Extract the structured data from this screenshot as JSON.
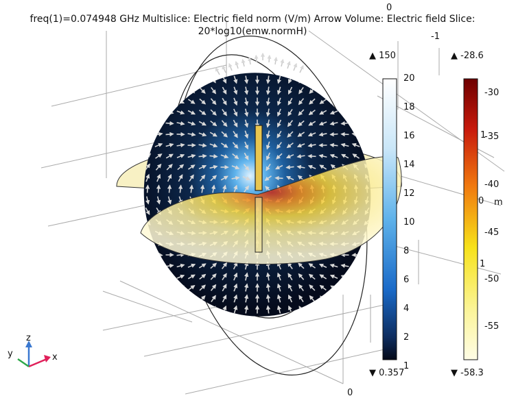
{
  "header": {
    "line1": "freq(1)=0.074948 GHz Multislice: Electric field norm (V/m)  Arrow Volume: Electric field  Slice:",
    "line2": "20*log10(emw.normH)"
  },
  "axes": {
    "top_zero": "0",
    "top_minus_one": "-1",
    "right_one_upper": "1",
    "right_zero": "0",
    "right_unit": "m",
    "right_one_lower": "1",
    "bottom_zero": "0"
  },
  "triad": {
    "x": "x",
    "y": "y",
    "z": "z"
  },
  "colorbar_efield": {
    "max_label": "▲ 150",
    "min_label": "▼ 0.357",
    "ticks": [
      "20",
      "18",
      "16",
      "14",
      "12",
      "10",
      "8",
      "6",
      "4",
      "2",
      "1"
    ]
  },
  "colorbar_slice": {
    "max_label": "▲ -28.6",
    "min_label": "▼ -58.3",
    "ticks": [
      "-30",
      "-35",
      "-40",
      "-45",
      "-50",
      "-55"
    ]
  },
  "colors": {
    "disk_dark": "#061025",
    "field_blue": "#3a9ae0",
    "slice_yellow": "#fff6c0",
    "hot_red": "#d02010",
    "grid": "#a9a9a9"
  }
}
